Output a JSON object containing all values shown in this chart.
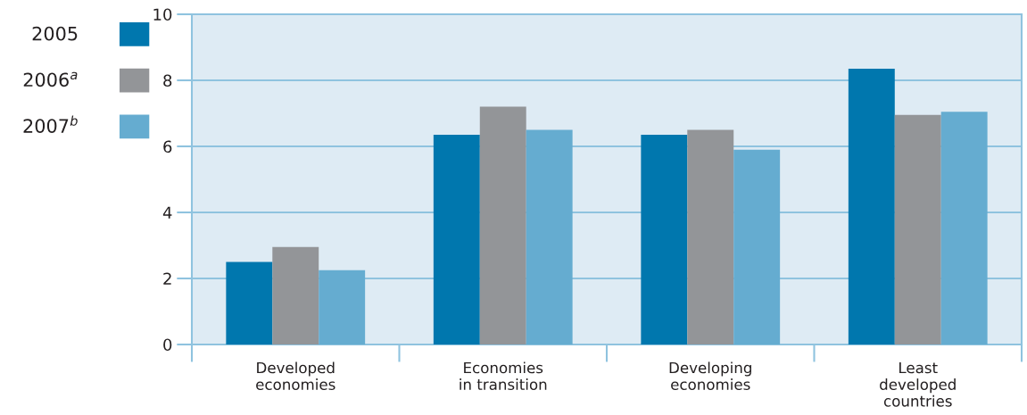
{
  "chart_data": {
    "type": "bar",
    "categories": [
      "Developed\neconomies",
      "Economies\nin transition",
      "Developing\neconomies",
      "Least\ndeveloped\ncountries"
    ],
    "series": [
      {
        "name": "2005",
        "color": "#0077ae",
        "values": [
          2.5,
          6.35,
          6.35,
          8.35
        ]
      },
      {
        "name": "2006$^{a}$",
        "color": "#939598",
        "values": [
          2.95,
          7.2,
          6.5,
          6.95
        ]
      },
      {
        "name": "2007$^{b}$",
        "color": "#65acd0",
        "values": [
          2.25,
          6.5,
          5.9,
          7.05
        ]
      }
    ],
    "ylim": [
      0,
      10
    ],
    "yticks": [
      0,
      2,
      4,
      6,
      8,
      10
    ],
    "grid": "y",
    "legend": "left"
  }
}
